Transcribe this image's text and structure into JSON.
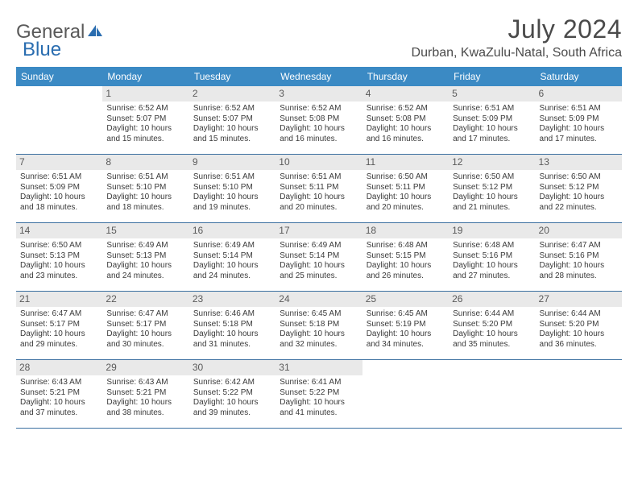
{
  "logo": {
    "text_general": "General",
    "text_blue": "Blue"
  },
  "title": "July 2024",
  "location": "Durban, KwaZulu-Natal, South Africa",
  "colors": {
    "header_bg": "#3b8ac4",
    "header_text": "#ffffff",
    "border": "#3b6fa0",
    "daynum_bg": "#e9e9e9",
    "text": "#3a3a3a",
    "logo_blue": "#2a6db0"
  },
  "days_of_week": [
    "Sunday",
    "Monday",
    "Tuesday",
    "Wednesday",
    "Thursday",
    "Friday",
    "Saturday"
  ],
  "weeks": [
    [
      {
        "n": "",
        "sr": "",
        "ss": "",
        "dl": ""
      },
      {
        "n": "1",
        "sr": "Sunrise: 6:52 AM",
        "ss": "Sunset: 5:07 PM",
        "dl": "Daylight: 10 hours and 15 minutes."
      },
      {
        "n": "2",
        "sr": "Sunrise: 6:52 AM",
        "ss": "Sunset: 5:07 PM",
        "dl": "Daylight: 10 hours and 15 minutes."
      },
      {
        "n": "3",
        "sr": "Sunrise: 6:52 AM",
        "ss": "Sunset: 5:08 PM",
        "dl": "Daylight: 10 hours and 16 minutes."
      },
      {
        "n": "4",
        "sr": "Sunrise: 6:52 AM",
        "ss": "Sunset: 5:08 PM",
        "dl": "Daylight: 10 hours and 16 minutes."
      },
      {
        "n": "5",
        "sr": "Sunrise: 6:51 AM",
        "ss": "Sunset: 5:09 PM",
        "dl": "Daylight: 10 hours and 17 minutes."
      },
      {
        "n": "6",
        "sr": "Sunrise: 6:51 AM",
        "ss": "Sunset: 5:09 PM",
        "dl": "Daylight: 10 hours and 17 minutes."
      }
    ],
    [
      {
        "n": "7",
        "sr": "Sunrise: 6:51 AM",
        "ss": "Sunset: 5:09 PM",
        "dl": "Daylight: 10 hours and 18 minutes."
      },
      {
        "n": "8",
        "sr": "Sunrise: 6:51 AM",
        "ss": "Sunset: 5:10 PM",
        "dl": "Daylight: 10 hours and 18 minutes."
      },
      {
        "n": "9",
        "sr": "Sunrise: 6:51 AM",
        "ss": "Sunset: 5:10 PM",
        "dl": "Daylight: 10 hours and 19 minutes."
      },
      {
        "n": "10",
        "sr": "Sunrise: 6:51 AM",
        "ss": "Sunset: 5:11 PM",
        "dl": "Daylight: 10 hours and 20 minutes."
      },
      {
        "n": "11",
        "sr": "Sunrise: 6:50 AM",
        "ss": "Sunset: 5:11 PM",
        "dl": "Daylight: 10 hours and 20 minutes."
      },
      {
        "n": "12",
        "sr": "Sunrise: 6:50 AM",
        "ss": "Sunset: 5:12 PM",
        "dl": "Daylight: 10 hours and 21 minutes."
      },
      {
        "n": "13",
        "sr": "Sunrise: 6:50 AM",
        "ss": "Sunset: 5:12 PM",
        "dl": "Daylight: 10 hours and 22 minutes."
      }
    ],
    [
      {
        "n": "14",
        "sr": "Sunrise: 6:50 AM",
        "ss": "Sunset: 5:13 PM",
        "dl": "Daylight: 10 hours and 23 minutes."
      },
      {
        "n": "15",
        "sr": "Sunrise: 6:49 AM",
        "ss": "Sunset: 5:13 PM",
        "dl": "Daylight: 10 hours and 24 minutes."
      },
      {
        "n": "16",
        "sr": "Sunrise: 6:49 AM",
        "ss": "Sunset: 5:14 PM",
        "dl": "Daylight: 10 hours and 24 minutes."
      },
      {
        "n": "17",
        "sr": "Sunrise: 6:49 AM",
        "ss": "Sunset: 5:14 PM",
        "dl": "Daylight: 10 hours and 25 minutes."
      },
      {
        "n": "18",
        "sr": "Sunrise: 6:48 AM",
        "ss": "Sunset: 5:15 PM",
        "dl": "Daylight: 10 hours and 26 minutes."
      },
      {
        "n": "19",
        "sr": "Sunrise: 6:48 AM",
        "ss": "Sunset: 5:16 PM",
        "dl": "Daylight: 10 hours and 27 minutes."
      },
      {
        "n": "20",
        "sr": "Sunrise: 6:47 AM",
        "ss": "Sunset: 5:16 PM",
        "dl": "Daylight: 10 hours and 28 minutes."
      }
    ],
    [
      {
        "n": "21",
        "sr": "Sunrise: 6:47 AM",
        "ss": "Sunset: 5:17 PM",
        "dl": "Daylight: 10 hours and 29 minutes."
      },
      {
        "n": "22",
        "sr": "Sunrise: 6:47 AM",
        "ss": "Sunset: 5:17 PM",
        "dl": "Daylight: 10 hours and 30 minutes."
      },
      {
        "n": "23",
        "sr": "Sunrise: 6:46 AM",
        "ss": "Sunset: 5:18 PM",
        "dl": "Daylight: 10 hours and 31 minutes."
      },
      {
        "n": "24",
        "sr": "Sunrise: 6:45 AM",
        "ss": "Sunset: 5:18 PM",
        "dl": "Daylight: 10 hours and 32 minutes."
      },
      {
        "n": "25",
        "sr": "Sunrise: 6:45 AM",
        "ss": "Sunset: 5:19 PM",
        "dl": "Daylight: 10 hours and 34 minutes."
      },
      {
        "n": "26",
        "sr": "Sunrise: 6:44 AM",
        "ss": "Sunset: 5:20 PM",
        "dl": "Daylight: 10 hours and 35 minutes."
      },
      {
        "n": "27",
        "sr": "Sunrise: 6:44 AM",
        "ss": "Sunset: 5:20 PM",
        "dl": "Daylight: 10 hours and 36 minutes."
      }
    ],
    [
      {
        "n": "28",
        "sr": "Sunrise: 6:43 AM",
        "ss": "Sunset: 5:21 PM",
        "dl": "Daylight: 10 hours and 37 minutes."
      },
      {
        "n": "29",
        "sr": "Sunrise: 6:43 AM",
        "ss": "Sunset: 5:21 PM",
        "dl": "Daylight: 10 hours and 38 minutes."
      },
      {
        "n": "30",
        "sr": "Sunrise: 6:42 AM",
        "ss": "Sunset: 5:22 PM",
        "dl": "Daylight: 10 hours and 39 minutes."
      },
      {
        "n": "31",
        "sr": "Sunrise: 6:41 AM",
        "ss": "Sunset: 5:22 PM",
        "dl": "Daylight: 10 hours and 41 minutes."
      },
      {
        "n": "",
        "sr": "",
        "ss": "",
        "dl": ""
      },
      {
        "n": "",
        "sr": "",
        "ss": "",
        "dl": ""
      },
      {
        "n": "",
        "sr": "",
        "ss": "",
        "dl": ""
      }
    ]
  ]
}
